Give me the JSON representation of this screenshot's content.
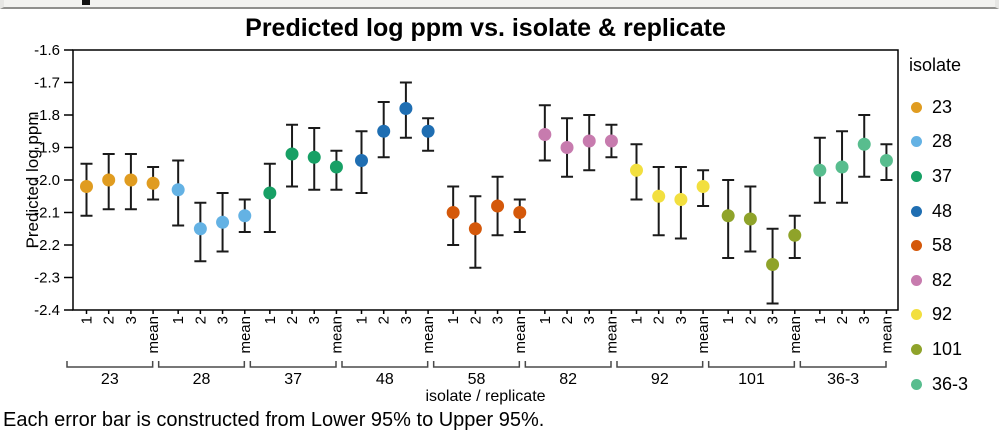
{
  "window": {
    "strip_note": ""
  },
  "chart_data": {
    "type": "scatter",
    "subtype": "points-with-error-bars",
    "title": "Predicted log ppm vs. isolate & replicate",
    "xlabel": "isolate / replicate",
    "ylabel": "Predicted log ppm",
    "caption": "Each error bar is constructed from Lower 95% to Upper 95%.",
    "legend_title": "isolate",
    "ylim": [
      -2.4,
      -1.6
    ],
    "yticks": [
      "-1.6",
      "-1.7",
      "-1.8",
      "-1.9",
      "-2.0",
      "-2.1",
      "-2.2",
      "-2.3",
      "-2.4"
    ],
    "grid": false,
    "legend_position": "right",
    "replicate_labels": [
      "1",
      "2",
      "3",
      "mean"
    ],
    "groups": [
      {
        "isolate": "23",
        "color": "#E09C20",
        "points": [
          {
            "rep": "1",
            "value": -2.02,
            "lower": -2.11,
            "upper": -1.95
          },
          {
            "rep": "2",
            "value": -2.0,
            "lower": -2.09,
            "upper": -1.92
          },
          {
            "rep": "3",
            "value": -2.0,
            "lower": -2.09,
            "upper": -1.92
          },
          {
            "rep": "mean",
            "value": -2.01,
            "lower": -2.06,
            "upper": -1.96
          }
        ]
      },
      {
        "isolate": "28",
        "color": "#64B2E4",
        "points": [
          {
            "rep": "1",
            "value": -2.03,
            "lower": -2.14,
            "upper": -1.94
          },
          {
            "rep": "2",
            "value": -2.15,
            "lower": -2.25,
            "upper": -2.07
          },
          {
            "rep": "3",
            "value": -2.13,
            "lower": -2.22,
            "upper": -2.04
          },
          {
            "rep": "mean",
            "value": -2.11,
            "lower": -2.16,
            "upper": -2.06
          }
        ]
      },
      {
        "isolate": "37",
        "color": "#17A065",
        "points": [
          {
            "rep": "1",
            "value": -2.04,
            "lower": -2.16,
            "upper": -1.95
          },
          {
            "rep": "2",
            "value": -1.92,
            "lower": -2.02,
            "upper": -1.83
          },
          {
            "rep": "3",
            "value": -1.93,
            "lower": -2.03,
            "upper": -1.84
          },
          {
            "rep": "mean",
            "value": -1.96,
            "lower": -2.03,
            "upper": -1.91
          }
        ]
      },
      {
        "isolate": "48",
        "color": "#1F6EB2",
        "points": [
          {
            "rep": "1",
            "value": -1.94,
            "lower": -2.04,
            "upper": -1.85
          },
          {
            "rep": "2",
            "value": -1.85,
            "lower": -1.93,
            "upper": -1.76
          },
          {
            "rep": "3",
            "value": -1.78,
            "lower": -1.87,
            "upper": -1.7
          },
          {
            "rep": "mean",
            "value": -1.85,
            "lower": -1.91,
            "upper": -1.81
          }
        ]
      },
      {
        "isolate": "58",
        "color": "#D4580A",
        "points": [
          {
            "rep": "1",
            "value": -2.1,
            "lower": -2.2,
            "upper": -2.02
          },
          {
            "rep": "2",
            "value": -2.15,
            "lower": -2.27,
            "upper": -2.05
          },
          {
            "rep": "3",
            "value": -2.08,
            "lower": -2.17,
            "upper": -1.99
          },
          {
            "rep": "mean",
            "value": -2.1,
            "lower": -2.16,
            "upper": -2.06
          }
        ]
      },
      {
        "isolate": "82",
        "color": "#C77BAE",
        "points": [
          {
            "rep": "1",
            "value": -1.86,
            "lower": -1.94,
            "upper": -1.77
          },
          {
            "rep": "2",
            "value": -1.9,
            "lower": -1.99,
            "upper": -1.81
          },
          {
            "rep": "3",
            "value": -1.88,
            "lower": -1.97,
            "upper": -1.8
          },
          {
            "rep": "mean",
            "value": -1.88,
            "lower": -1.93,
            "upper": -1.83
          }
        ]
      },
      {
        "isolate": "92",
        "color": "#F2DF3F",
        "points": [
          {
            "rep": "1",
            "value": -1.97,
            "lower": -2.06,
            "upper": -1.89
          },
          {
            "rep": "2",
            "value": -2.05,
            "lower": -2.17,
            "upper": -1.96
          },
          {
            "rep": "3",
            "value": -2.06,
            "lower": -2.18,
            "upper": -1.96
          },
          {
            "rep": "mean",
            "value": -2.02,
            "lower": -2.08,
            "upper": -1.97
          }
        ]
      },
      {
        "isolate": "101",
        "color": "#8FA32A",
        "points": [
          {
            "rep": "1",
            "value": -2.11,
            "lower": -2.24,
            "upper": -2.0
          },
          {
            "rep": "2",
            "value": -2.12,
            "lower": -2.22,
            "upper": -2.02
          },
          {
            "rep": "3",
            "value": -2.26,
            "lower": -2.38,
            "upper": -2.15
          },
          {
            "rep": "mean",
            "value": -2.17,
            "lower": -2.24,
            "upper": -2.11
          }
        ]
      },
      {
        "isolate": "36-3",
        "color": "#58BD8E",
        "points": [
          {
            "rep": "1",
            "value": -1.97,
            "lower": -2.07,
            "upper": -1.87
          },
          {
            "rep": "2",
            "value": -1.96,
            "lower": -2.07,
            "upper": -1.85
          },
          {
            "rep": "3",
            "value": -1.89,
            "lower": -1.99,
            "upper": -1.8
          },
          {
            "rep": "mean",
            "value": -1.94,
            "lower": -2.0,
            "upper": -1.89
          }
        ]
      }
    ]
  }
}
